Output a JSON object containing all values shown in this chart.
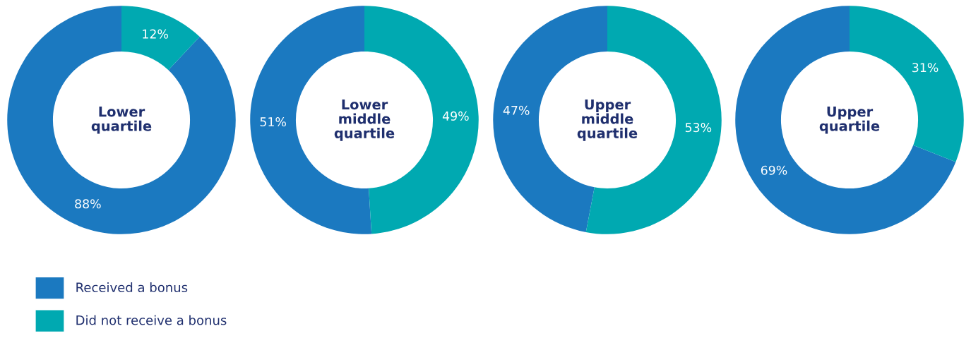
{
  "chart_data": [
    {
      "type": "donut",
      "title": "Lower\nquartile",
      "categories": [
        "Received a bonus",
        "Did not receive a bonus"
      ],
      "values": [
        88,
        12
      ],
      "value_labels": [
        "88%",
        "12%"
      ],
      "colors": [
        "#1b79c0",
        "#00a9b1"
      ],
      "legend": "bottom left"
    },
    {
      "type": "donut",
      "title": "Lower\nmiddle\nquartile",
      "categories": [
        null,
        null
      ],
      "values": [
        51,
        49
      ],
      "value_labels": [
        "51%",
        "49%"
      ],
      "colors": [
        "#1b79c0",
        "#00a9b1"
      ]
    },
    {
      "type": "donut",
      "title": "Upper\nmiddle\nquartile",
      "categories": [
        null,
        null
      ],
      "values": [
        47,
        53
      ],
      "value_labels": [
        "47%",
        "53%"
      ],
      "colors": [
        "#1b79c0",
        "#00a9b1"
      ]
    },
    {
      "type": "donut",
      "title": "Upper\nquartile",
      "categories": [
        null,
        null
      ],
      "values": [
        69,
        31
      ],
      "value_labels": [
        "69%",
        "31%"
      ],
      "colors": [
        "#1b79c0",
        "#00a9b1"
      ]
    }
  ]
}
